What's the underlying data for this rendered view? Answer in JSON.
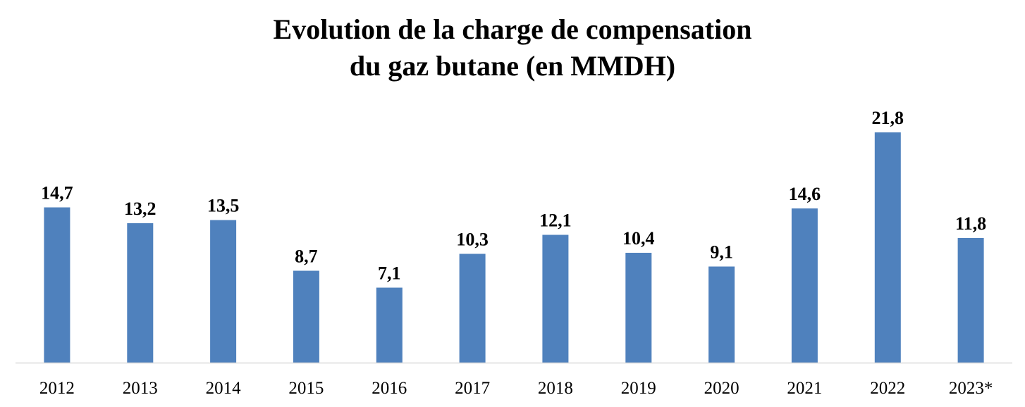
{
  "chart_data": {
    "type": "bar",
    "title_lines": [
      "Evolution de la charge de compensation",
      "du gaz butane (en MMDH)"
    ],
    "categories": [
      "2012",
      "2013",
      "2014",
      "2015",
      "2016",
      "2017",
      "2018",
      "2019",
      "2020",
      "2021",
      "2022",
      "2023*"
    ],
    "values": [
      14.7,
      13.2,
      13.5,
      8.7,
      7.1,
      10.3,
      12.1,
      10.4,
      9.1,
      14.6,
      21.8,
      11.8
    ],
    "data_labels": [
      "14,7",
      "13,2",
      "13,5",
      "8,7",
      "7,1",
      "10,3",
      "12,1",
      "10,4",
      "9,1",
      "14,6",
      "21,8",
      "11,8"
    ],
    "xlabel": "",
    "ylabel": "",
    "ylim": [
      0,
      22
    ],
    "grid": false,
    "legend": "none",
    "bar_color": "#4f81bd",
    "axis_color": "#d9d9d9"
  }
}
